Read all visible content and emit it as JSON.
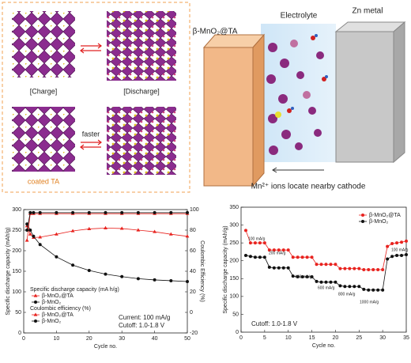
{
  "diagram": {
    "charge": "[Charge]",
    "discharge": "[Discharge]",
    "faster": "faster",
    "coated": "coated TA",
    "cathode": "β-MnO₂@TA",
    "electrolyte": "Electrolyte",
    "zinc": "Zn metal",
    "ions": "Mn²⁺ ions locate nearby cathode"
  },
  "chart_data": [
    {
      "type": "line",
      "xlabel": "Cycle no.",
      "ylabel": "Specific discharge capacity (mAh/g)",
      "y2label": "Coulombic Efficiency (%)",
      "x": [
        1,
        2,
        3,
        5,
        10,
        15,
        20,
        25,
        30,
        35,
        40,
        45,
        50
      ],
      "xlim": [
        0,
        50
      ],
      "xticks": [
        0,
        10,
        20,
        30,
        40,
        50
      ],
      "ylim": [
        0,
        300
      ],
      "yticks": [
        0,
        50,
        100,
        150,
        200,
        250,
        300
      ],
      "y2lim": [
        -20,
        100
      ],
      "y2ticks": [
        -20,
        0,
        20,
        40,
        60,
        80,
        100
      ],
      "legend_titles": [
        "Specific discharge capacity (mA h/g)",
        "Coulombic efficiency (%)"
      ],
      "annotations": [
        "Current: 100 mA/g",
        "Cutoff: 1.0-1.8 V"
      ],
      "series": [
        {
          "name": "β-MnO₂@TA",
          "color": "#e8231f",
          "marker": "triangle",
          "group": 0,
          "values": [
            260,
            240,
            232,
            233,
            240,
            248,
            253,
            255,
            254,
            250,
            246,
            240,
            235
          ]
        },
        {
          "name": "β-MnO₂",
          "color": "#111111",
          "marker": "circle",
          "group": 0,
          "values": [
            265,
            250,
            235,
            215,
            185,
            165,
            152,
            143,
            137,
            132,
            129,
            127,
            125
          ]
        },
        {
          "name": "β-MnO₂@TA",
          "color": "#e8231f",
          "marker": "triangle",
          "group": 1,
          "axis": "y2",
          "values": [
            70,
            96,
            96,
            96,
            96,
            96,
            96,
            96,
            96,
            96,
            96,
            96,
            96
          ]
        },
        {
          "name": "β-MnO₂",
          "color": "#111111",
          "marker": "circle",
          "group": 1,
          "axis": "y2",
          "values": [
            80,
            97,
            97,
            97,
            97,
            97,
            97,
            97,
            97,
            97,
            97,
            97,
            97
          ]
        }
      ]
    },
    {
      "type": "line",
      "xlabel": "Cycle no.",
      "ylabel": "Specific discharge capacity (mAh/g)",
      "x": [
        1,
        2,
        3,
        4,
        5,
        6,
        7,
        8,
        9,
        10,
        11,
        12,
        13,
        14,
        15,
        16,
        17,
        18,
        19,
        20,
        21,
        22,
        23,
        24,
        25,
        26,
        27,
        28,
        29,
        30,
        31,
        32,
        33,
        34,
        35
      ],
      "xlim": [
        0,
        35
      ],
      "xticks": [
        0,
        5,
        10,
        15,
        20,
        25,
        30,
        35
      ],
      "ylim": [
        0,
        350
      ],
      "yticks": [
        0,
        50,
        100,
        150,
        200,
        250,
        300,
        350
      ],
      "annotations": [
        "Cutoff: 1.0-1.8 V"
      ],
      "rate_labels": [
        "100 mA/g",
        "200 mA/g",
        "400 mA/g",
        "600 mA/g",
        "800 mA/g",
        "1000 mA/g",
        "100 mA/g"
      ],
      "series": [
        {
          "name": "β-MnO₂@TA",
          "color": "#e8231f",
          "marker": "circle",
          "values": [
            285,
            250,
            250,
            250,
            250,
            230,
            230,
            230,
            230,
            230,
            210,
            210,
            210,
            210,
            210,
            190,
            190,
            190,
            190,
            190,
            178,
            178,
            178,
            178,
            178,
            175,
            175,
            175,
            175,
            175,
            240,
            248,
            250,
            252,
            255
          ]
        },
        {
          "name": "β-MnO₂",
          "color": "#111111",
          "marker": "circle",
          "values": [
            215,
            212,
            210,
            210,
            210,
            182,
            180,
            180,
            180,
            180,
            157,
            155,
            155,
            155,
            155,
            142,
            140,
            140,
            140,
            140,
            130,
            128,
            128,
            128,
            128,
            120,
            118,
            118,
            118,
            118,
            205,
            212,
            215,
            215,
            217
          ]
        }
      ]
    }
  ]
}
